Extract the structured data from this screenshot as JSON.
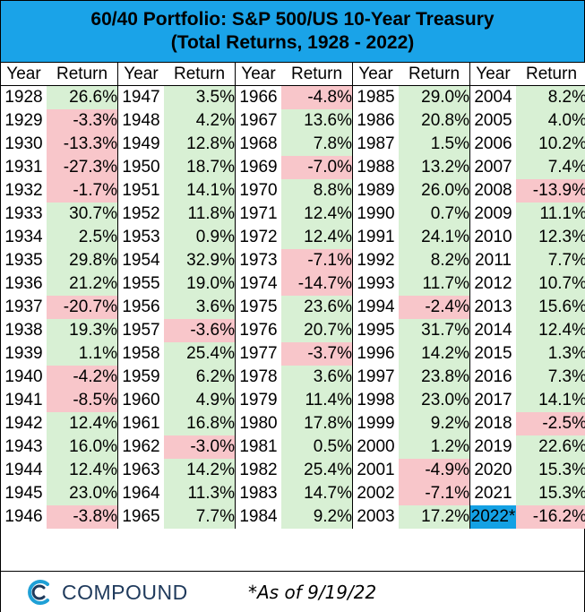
{
  "title_line1": "60/40 Portfolio: S&P 500/US 10-Year Treasury",
  "title_line2": "(Total Returns, 1928 - 2022)",
  "col_year": "Year",
  "col_return": "Return",
  "colors": {
    "header": "#1aa3e8",
    "positive": "#d8f0d4",
    "negative": "#f8c6ca",
    "highlight": "#14a1e4"
  },
  "columns": [
    [
      [
        "1928",
        "26.6%"
      ],
      [
        "1929",
        "-3.3%"
      ],
      [
        "1930",
        "-13.3%"
      ],
      [
        "1931",
        "-27.3%"
      ],
      [
        "1932",
        "-1.7%"
      ],
      [
        "1933",
        "30.7%"
      ],
      [
        "1934",
        "2.5%"
      ],
      [
        "1935",
        "29.8%"
      ],
      [
        "1936",
        "21.2%"
      ],
      [
        "1937",
        "-20.7%"
      ],
      [
        "1938",
        "19.3%"
      ],
      [
        "1939",
        "1.1%"
      ],
      [
        "1940",
        "-4.2%"
      ],
      [
        "1941",
        "-8.5%"
      ],
      [
        "1942",
        "12.4%"
      ],
      [
        "1943",
        "16.0%"
      ],
      [
        "1944",
        "12.4%"
      ],
      [
        "1945",
        "23.0%"
      ],
      [
        "1946",
        "-3.8%"
      ]
    ],
    [
      [
        "1947",
        "3.5%"
      ],
      [
        "1948",
        "4.2%"
      ],
      [
        "1949",
        "12.8%"
      ],
      [
        "1950",
        "18.7%"
      ],
      [
        "1951",
        "14.1%"
      ],
      [
        "1952",
        "11.8%"
      ],
      [
        "1953",
        "0.9%"
      ],
      [
        "1954",
        "32.9%"
      ],
      [
        "1955",
        "19.0%"
      ],
      [
        "1956",
        "3.6%"
      ],
      [
        "1957",
        "-3.6%"
      ],
      [
        "1958",
        "25.4%"
      ],
      [
        "1959",
        "6.2%"
      ],
      [
        "1960",
        "4.9%"
      ],
      [
        "1961",
        "16.8%"
      ],
      [
        "1962",
        "-3.0%"
      ],
      [
        "1963",
        "14.2%"
      ],
      [
        "1964",
        "11.3%"
      ],
      [
        "1965",
        "7.7%"
      ]
    ],
    [
      [
        "1966",
        "-4.8%"
      ],
      [
        "1967",
        "13.6%"
      ],
      [
        "1968",
        "7.8%"
      ],
      [
        "1969",
        "-7.0%"
      ],
      [
        "1970",
        "8.8%"
      ],
      [
        "1971",
        "12.4%"
      ],
      [
        "1972",
        "12.4%"
      ],
      [
        "1973",
        "-7.1%"
      ],
      [
        "1974",
        "-14.7%"
      ],
      [
        "1975",
        "23.6%"
      ],
      [
        "1976",
        "20.7%"
      ],
      [
        "1977",
        "-3.7%"
      ],
      [
        "1978",
        "3.6%"
      ],
      [
        "1979",
        "11.4%"
      ],
      [
        "1980",
        "17.8%"
      ],
      [
        "1981",
        "0.5%"
      ],
      [
        "1982",
        "25.4%"
      ],
      [
        "1983",
        "14.7%"
      ],
      [
        "1984",
        "9.2%"
      ]
    ],
    [
      [
        "1985",
        "29.0%"
      ],
      [
        "1986",
        "20.8%"
      ],
      [
        "1987",
        "1.5%"
      ],
      [
        "1988",
        "13.2%"
      ],
      [
        "1989",
        "26.0%"
      ],
      [
        "1990",
        "0.7%"
      ],
      [
        "1991",
        "24.1%"
      ],
      [
        "1992",
        "8.2%"
      ],
      [
        "1993",
        "11.7%"
      ],
      [
        "1994",
        "-2.4%"
      ],
      [
        "1995",
        "31.7%"
      ],
      [
        "1996",
        "14.2%"
      ],
      [
        "1997",
        "23.8%"
      ],
      [
        "1998",
        "23.0%"
      ],
      [
        "1999",
        "9.2%"
      ],
      [
        "2000",
        "1.2%"
      ],
      [
        "2001",
        "-4.9%"
      ],
      [
        "2002",
        "-7.1%"
      ],
      [
        "2003",
        "17.2%"
      ]
    ],
    [
      [
        "2004",
        "8.2%"
      ],
      [
        "2005",
        "4.0%"
      ],
      [
        "2006",
        "10.2%"
      ],
      [
        "2007",
        "7.4%"
      ],
      [
        "2008",
        "-13.9%"
      ],
      [
        "2009",
        "11.1%"
      ],
      [
        "2010",
        "12.3%"
      ],
      [
        "2011",
        "7.7%"
      ],
      [
        "2012",
        "10.7%"
      ],
      [
        "2013",
        "15.6%"
      ],
      [
        "2014",
        "12.4%"
      ],
      [
        "2015",
        "1.3%"
      ],
      [
        "2016",
        "7.3%"
      ],
      [
        "2017",
        "14.1%"
      ],
      [
        "2018",
        "-2.5%"
      ],
      [
        "2019",
        "22.6%"
      ],
      [
        "2020",
        "15.3%"
      ],
      [
        "2021",
        "15.3%"
      ],
      [
        "2022*",
        "-16.2%"
      ]
    ]
  ],
  "highlight_year": "2022*",
  "footer": {
    "logo_icon": "compound-c-logo-icon",
    "logo_text": "COMPOUND",
    "as_of": "*As of 9/19/22"
  }
}
